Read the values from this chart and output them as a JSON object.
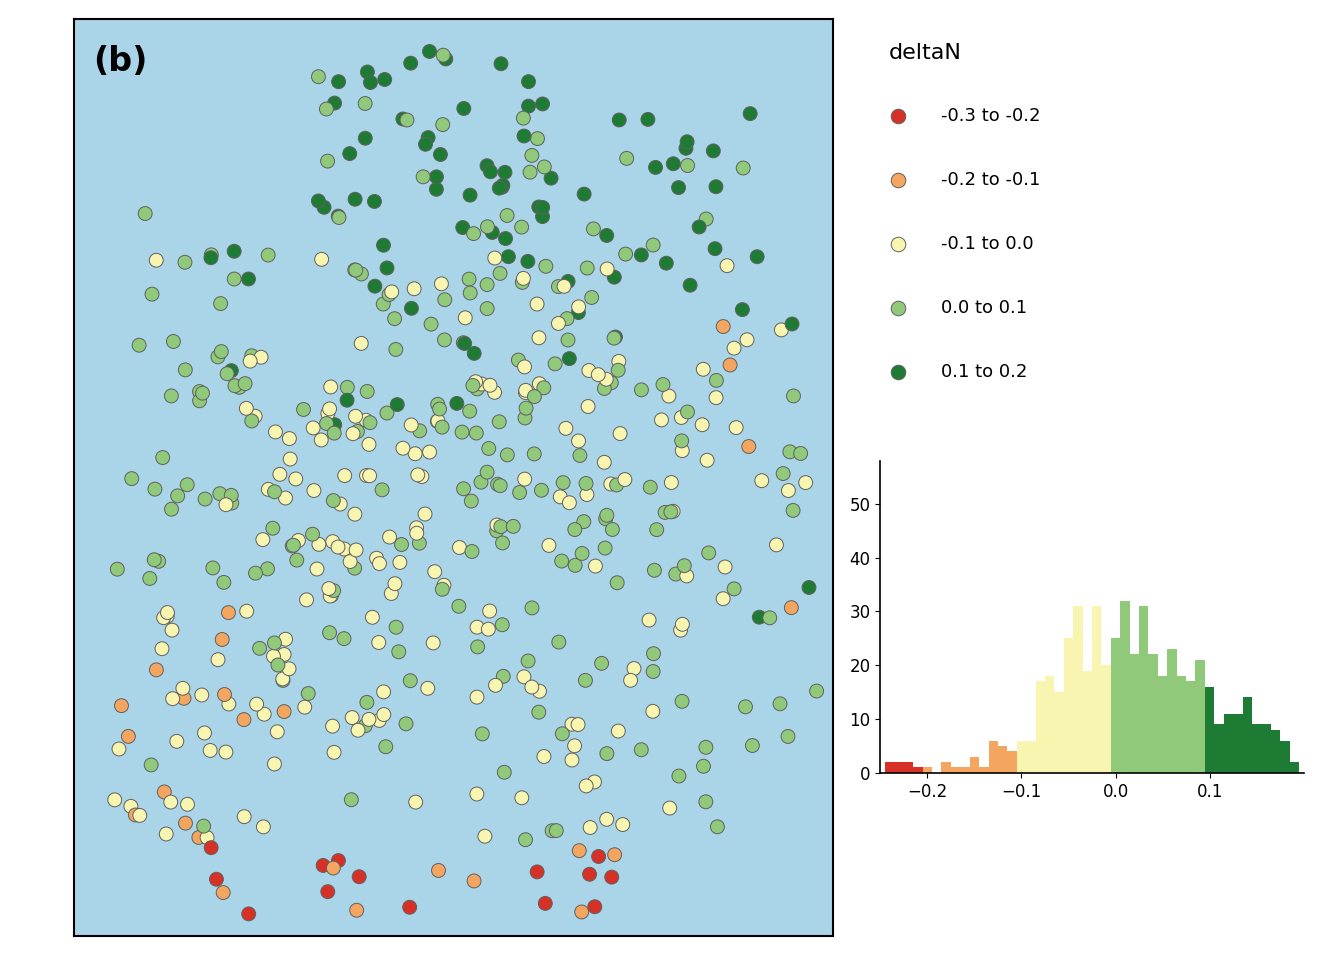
{
  "title_label": "(b)",
  "legend_title": "deltaN",
  "categories": [
    {
      "label": "-0.3 to -0.2",
      "color": "#d73027",
      "range": [
        -0.35,
        -0.2
      ]
    },
    {
      "label": "-0.2 to -0.1",
      "color": "#f4a560",
      "range": [
        -0.2,
        -0.1
      ]
    },
    {
      "label": "-0.1 to 0.0",
      "color": "#f7f5b0",
      "range": [
        -0.1,
        0.0
      ]
    },
    {
      "label": "0.0 to 0.1",
      "color": "#90c97a",
      "range": [
        0.0,
        0.1
      ]
    },
    {
      "label": "0.1 to 0.2",
      "color": "#1e7b34",
      "range": [
        0.1,
        0.25
      ]
    }
  ],
  "map_bg": "#aad4e8",
  "map_xlim": [
    0,
    100
  ],
  "map_ylim": [
    0,
    100
  ],
  "hist_xlim": [
    -0.25,
    0.2
  ],
  "hist_ylim": [
    0,
    58
  ],
  "hist_yticks": [
    0,
    10,
    20,
    30,
    40,
    50
  ],
  "hist_xticks": [
    -0.2,
    -0.1,
    0,
    0.1
  ],
  "edgecolor": "#606060",
  "marker_size": 100,
  "seed": 99,
  "n_points": 550
}
